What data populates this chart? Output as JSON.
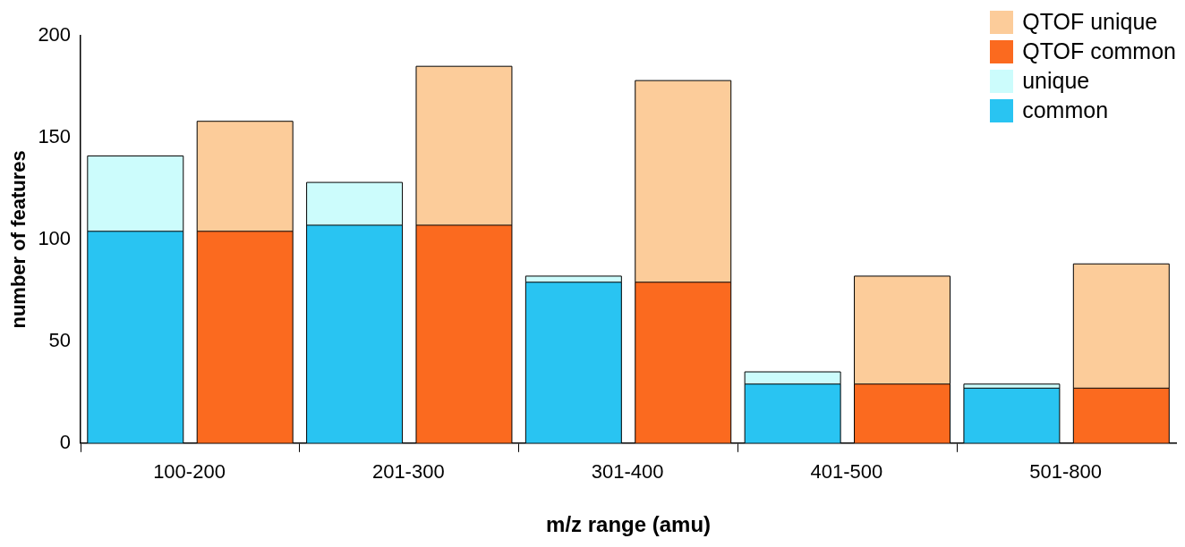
{
  "chart_data": {
    "type": "bar",
    "xlabel": "m/z range (amu)",
    "ylabel": "number of features",
    "categories": [
      "100-200",
      null,
      "201-300",
      null,
      "301-400",
      null,
      "401-500",
      null,
      "501-800",
      null
    ],
    "stacked": true,
    "ylim": [
      0,
      200
    ],
    "yticks": [
      0,
      50,
      100,
      150,
      200
    ],
    "grid": false,
    "legend": "top right",
    "series": [
      {
        "name": "common",
        "color": "#29c4f2",
        "values": [
          104,
          null,
          107,
          null,
          79,
          null,
          29,
          null,
          27,
          null
        ]
      },
      {
        "name": "unique",
        "color": "#ccfcfc",
        "values": [
          37,
          null,
          21,
          null,
          3,
          null,
          6,
          null,
          2,
          null
        ]
      },
      {
        "name": "QTOF common",
        "color": "#fb6a1f",
        "values": [
          null,
          104,
          null,
          107,
          null,
          79,
          null,
          29,
          null,
          27
        ]
      },
      {
        "name": "QTOF unique",
        "color": "#fccc9a",
        "values": [
          null,
          54,
          null,
          78,
          null,
          99,
          null,
          53,
          null,
          61
        ]
      }
    ]
  }
}
